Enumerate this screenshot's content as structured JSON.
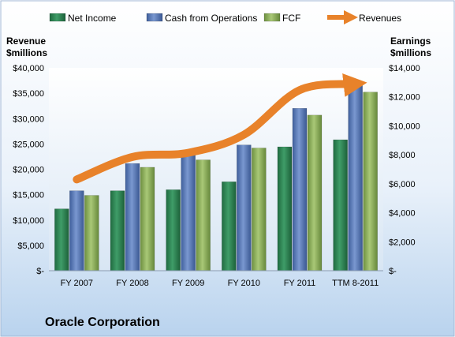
{
  "chart_data": {
    "type": "bar",
    "title": "Oracle Corporation",
    "categories": [
      "FY 2007",
      "FY 2008",
      "FY 2009",
      "FY 2010",
      "FY 2011",
      "TTM 8-2011"
    ],
    "series": [
      {
        "name": "Net Income",
        "axis": "right",
        "values": [
          4270,
          5520,
          5590,
          6140,
          8550,
          9040
        ]
      },
      {
        "name": "Cash from Operations",
        "axis": "right",
        "values": [
          5520,
          7400,
          8260,
          8680,
          11210,
          12850
        ]
      },
      {
        "name": "FCF",
        "axis": "right",
        "values": [
          5200,
          7140,
          7650,
          8470,
          10740,
          12330
        ]
      },
      {
        "name": "Revenues",
        "type": "line",
        "axis": "left",
        "values": [
          17990,
          22430,
          23250,
          26820,
          35620,
          36850
        ]
      }
    ],
    "y_left": {
      "label": "Revenue\n$millions",
      "lim": [
        0,
        40000
      ],
      "ticks": [
        "$-",
        "$5,000",
        "$10,000",
        "$15,000",
        "$20,000",
        "$25,000",
        "$30,000",
        "$35,000",
        "$40,000"
      ]
    },
    "y_right": {
      "label": "Earnings\n$millions",
      "lim": [
        0,
        14000
      ],
      "ticks": [
        "$-",
        "$2,000",
        "$4,000",
        "$6,000",
        "$8,000",
        "$10,000",
        "$12,000",
        "$14,000"
      ]
    },
    "legend": {
      "position": "top"
    },
    "grid": false,
    "colors": {
      "net_income": "#2e8b57",
      "cash_ops": "#5a7ab8",
      "fcf": "#8fb05a",
      "revenues": "#e8822a",
      "background_top": "#ffffff",
      "background_bottom": "#c3d9f0"
    }
  }
}
